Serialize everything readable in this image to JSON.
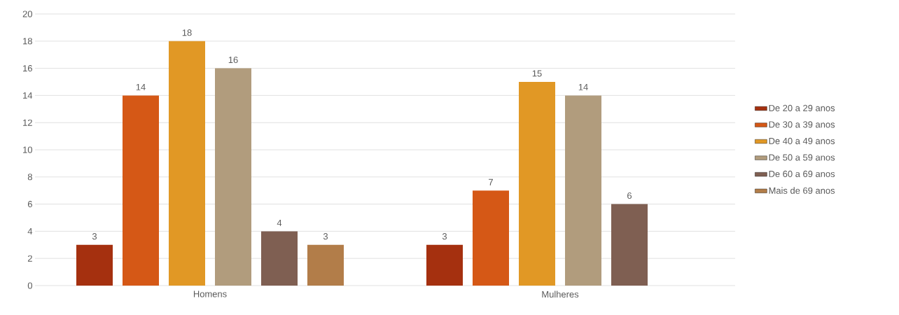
{
  "chart_data": {
    "type": "bar",
    "categories": [
      "Homens",
      "Mulheres"
    ],
    "series": [
      {
        "name": "De 20 a 29 anos",
        "color": "#a5300f",
        "values": [
          3,
          3
        ]
      },
      {
        "name": "De 30 a 39 anos",
        "color": "#d55816",
        "values": [
          14,
          7
        ]
      },
      {
        "name": "De 40 a 49 anos",
        "color": "#e19825",
        "values": [
          18,
          15
        ]
      },
      {
        "name": "De 50 a 59 anos",
        "color": "#b19c7d",
        "values": [
          16,
          14
        ]
      },
      {
        "name": "De 60 a 69 anos",
        "color": "#7f5f52",
        "values": [
          4,
          6
        ]
      },
      {
        "name": "Mais de 69 anos",
        "color": "#b27d49",
        "values": [
          3,
          null
        ]
      }
    ],
    "ylim": [
      0,
      20
    ],
    "yticks": [
      0,
      2,
      4,
      6,
      8,
      10,
      12,
      14,
      16,
      18,
      20
    ],
    "grid": "y",
    "legend": "right",
    "data_labels": true
  }
}
